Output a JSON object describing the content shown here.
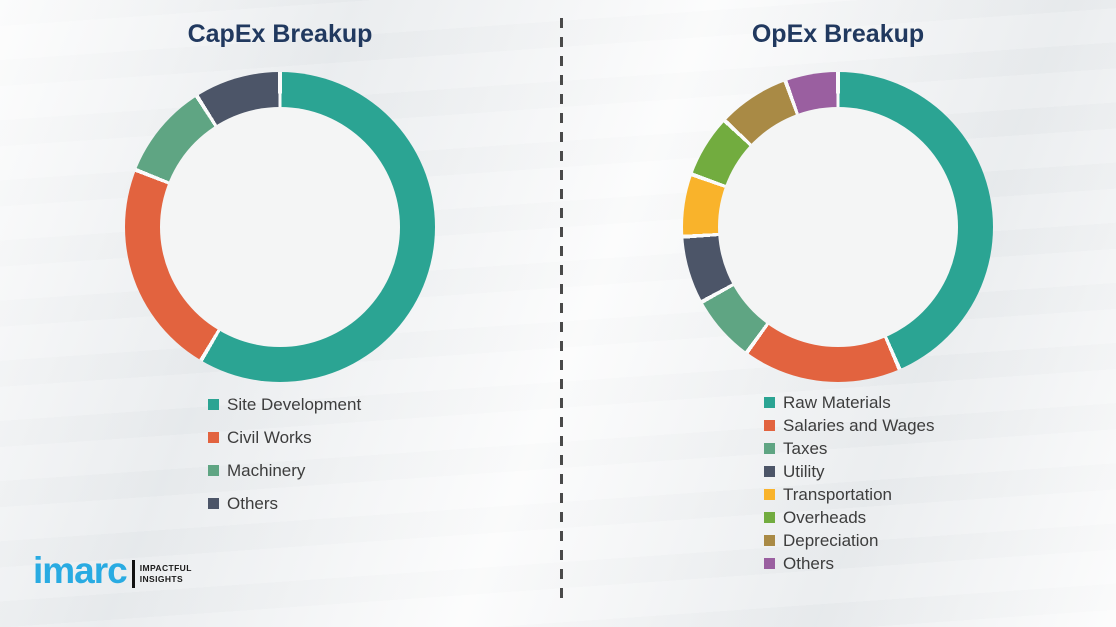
{
  "theme": {
    "background_color": "#F2F3F4",
    "title_color": "#21395F",
    "legend_text_color": "#3D3D3D",
    "divider_color": "#4A4A4A",
    "segment_gap_color": "#FAFBFB"
  },
  "divider": {
    "style": "vertical-dashed-line"
  },
  "chart_data": [
    {
      "type": "pie",
      "donut": true,
      "title": "CapEx Breakup",
      "start_angle_deg": 0,
      "direction": "clockwise",
      "legend_position": "bottom-left",
      "unit": "% (estimated from arc angles, no labels shown)",
      "segments": [
        {
          "label": "Site Development",
          "value": 58.5,
          "color": "#2BA493"
        },
        {
          "label": "Civil Works",
          "value": 22.5,
          "color": "#E2633F"
        },
        {
          "label": "Machinery",
          "value": 10.0,
          "color": "#5FA583"
        },
        {
          "label": "Others",
          "value": 9.0,
          "color": "#4C5568"
        }
      ]
    },
    {
      "type": "pie",
      "donut": true,
      "title": "OpEx Breakup",
      "start_angle_deg": 0,
      "direction": "clockwise",
      "legend_position": "bottom-left",
      "unit": "% (estimated from arc angles, no labels shown)",
      "segments": [
        {
          "label": "Raw Materials",
          "value": 43.5,
          "color": "#2BA493"
        },
        {
          "label": "Salaries and Wages",
          "value": 16.5,
          "color": "#E2633F"
        },
        {
          "label": "Taxes",
          "value": 7.0,
          "color": "#5FA583"
        },
        {
          "label": "Utility",
          "value": 7.0,
          "color": "#4C5568"
        },
        {
          "label": "Transportation",
          "value": 6.5,
          "color": "#F9B32B"
        },
        {
          "label": "Overheads",
          "value": 6.5,
          "color": "#72AC3F"
        },
        {
          "label": "Depreciation",
          "value": 7.5,
          "color": "#A98A45"
        },
        {
          "label": "Others",
          "value": 5.5,
          "color": "#9A5FA0"
        }
      ]
    }
  ],
  "logo": {
    "brand": "imarc",
    "tagline_line1": "IMPACTFUL",
    "tagline_line2": "INSIGHTS",
    "brand_color": "#29ABE2",
    "bar_color": "#111111",
    "tagline_color": "#1A1A1A"
  }
}
